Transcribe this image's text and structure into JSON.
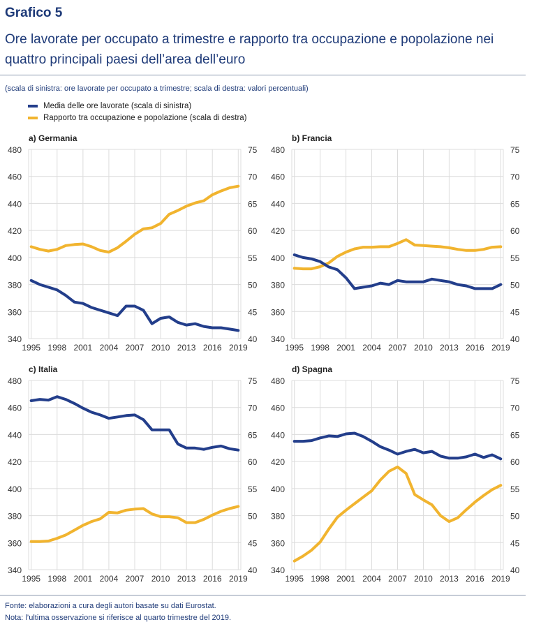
{
  "header": {
    "title": "Grafico 5",
    "subtitle": "Ore lavorate per occupato a trimestre e rapporto tra occupazione e popolazione nei quattro principali paesi dell’area dell’euro",
    "note": "(scala di sinistra: ore lavorate per occupato a trimestre; scala di destra: valori percentuali)"
  },
  "legend": [
    {
      "label": "Media delle ore lavorate (scala di sinistra)",
      "color": "#233e8b"
    },
    {
      "label": "Rapporto tra occupazione e popolazione (scala di destra)",
      "color": "#f1b42f"
    }
  ],
  "footer": {
    "source": "Fonte: elaborazioni a cura degli autori basate su dati Eurostat.",
    "note": "Nota: l’ultima osservazione si riferisce al quarto trimestre del 2019."
  },
  "chart_data": [
    {
      "type": "line",
      "title": "a) Germania",
      "x": [
        1995,
        1996,
        1997,
        1998,
        1999,
        2000,
        2001,
        2002,
        2003,
        2004,
        2005,
        2006,
        2007,
        2008,
        2009,
        2010,
        2011,
        2012,
        2013,
        2014,
        2015,
        2016,
        2017,
        2018,
        2019
      ],
      "xticks": [
        "1995",
        "1998",
        "2001",
        "2004",
        "2007",
        "2010",
        "2013",
        "2016",
        "2019"
      ],
      "ylim_left": [
        340,
        480
      ],
      "yticks_left": [
        "340",
        "360",
        "380",
        "400",
        "420",
        "440",
        "460",
        "480"
      ],
      "ylim_right": [
        40,
        75
      ],
      "yticks_right": [
        "40",
        "45",
        "50",
        "55",
        "60",
        "65",
        "70",
        "75"
      ],
      "series": [
        {
          "name": "Media delle ore lavorate (scala di sinistra)",
          "axis": "left",
          "values": [
            383,
            380,
            378,
            376,
            372,
            367,
            366,
            363,
            361,
            359,
            357,
            364,
            364,
            361,
            351,
            355,
            356,
            352,
            350,
            351,
            349,
            348,
            348,
            347,
            346
          ]
        },
        {
          "name": "Rapporto tra occupazione e popolazione (scala di destra)",
          "axis": "right",
          "values": [
            57.0,
            56.5,
            56.2,
            56.5,
            57.2,
            57.4,
            57.5,
            57.0,
            56.3,
            56.0,
            56.8,
            58.0,
            59.3,
            60.3,
            60.5,
            61.3,
            63.0,
            63.7,
            64.5,
            65.1,
            65.5,
            66.6,
            67.3,
            67.9,
            68.2
          ]
        }
      ]
    },
    {
      "type": "line",
      "title": "b) Francia",
      "x": [
        1995,
        1996,
        1997,
        1998,
        1999,
        2000,
        2001,
        2002,
        2003,
        2004,
        2005,
        2006,
        2007,
        2008,
        2009,
        2010,
        2011,
        2012,
        2013,
        2014,
        2015,
        2016,
        2017,
        2018,
        2019
      ],
      "xticks": [
        "1995",
        "1998",
        "2001",
        "2004",
        "2007",
        "2010",
        "2013",
        "2016",
        "2019"
      ],
      "ylim_left": [
        340,
        480
      ],
      "yticks_left": [
        "340",
        "360",
        "380",
        "400",
        "420",
        "440",
        "460",
        "480"
      ],
      "ylim_right": [
        40,
        75
      ],
      "yticks_right": [
        "40",
        "45",
        "50",
        "55",
        "60",
        "65",
        "70",
        "75"
      ],
      "series": [
        {
          "name": "Media delle ore lavorate (scala di sinistra)",
          "axis": "left",
          "values": [
            402,
            400,
            399,
            397,
            393,
            391,
            385,
            377,
            378,
            379,
            381,
            380,
            383,
            382,
            382,
            382,
            384,
            383,
            382,
            380,
            379,
            377,
            377,
            377,
            380
          ]
        },
        {
          "name": "Rapporto tra occupazione e popolazione (scala di destra)",
          "axis": "right",
          "values": [
            53.0,
            52.9,
            52.9,
            53.3,
            54.0,
            55.2,
            56.0,
            56.6,
            56.9,
            56.9,
            57.0,
            57.0,
            57.6,
            58.3,
            57.3,
            57.2,
            57.1,
            57.0,
            56.8,
            56.5,
            56.3,
            56.3,
            56.5,
            56.9,
            57.0
          ]
        }
      ]
    },
    {
      "type": "line",
      "title": "c) Italia",
      "x": [
        1995,
        1996,
        1997,
        1998,
        1999,
        2000,
        2001,
        2002,
        2003,
        2004,
        2005,
        2006,
        2007,
        2008,
        2009,
        2010,
        2011,
        2012,
        2013,
        2014,
        2015,
        2016,
        2017,
        2018,
        2019
      ],
      "xticks": [
        "1995",
        "1998",
        "2001",
        "2004",
        "2007",
        "2010",
        "2013",
        "2016",
        "2019"
      ],
      "ylim_left": [
        340,
        480
      ],
      "yticks_left": [
        "340",
        "360",
        "380",
        "400",
        "420",
        "440",
        "460",
        "480"
      ],
      "ylim_right": [
        40,
        75
      ],
      "yticks_right": [
        "40",
        "45",
        "50",
        "55",
        "60",
        "65",
        "70",
        "75"
      ],
      "series": [
        {
          "name": "Media delle ore lavorate (scala di sinistra)",
          "axis": "left",
          "values": [
            465,
            466,
            465.5,
            468,
            466,
            463,
            459.5,
            456.5,
            454.5,
            452,
            453,
            454,
            454.5,
            451,
            443.5,
            443.5,
            443.5,
            433,
            430,
            430,
            429,
            430.5,
            431.5,
            429.5,
            428.5
          ]
        },
        {
          "name": "Rapporto tra occupazione e popolazione (scala di destra)",
          "axis": "right",
          "values": [
            45.2,
            45.2,
            45.3,
            45.8,
            46.4,
            47.3,
            48.2,
            48.9,
            49.4,
            50.6,
            50.5,
            51.0,
            51.2,
            51.3,
            50.3,
            49.8,
            49.8,
            49.6,
            48.7,
            48.7,
            49.3,
            50.1,
            50.8,
            51.3,
            51.7
          ]
        }
      ]
    },
    {
      "type": "line",
      "title": "d) Spagna",
      "x": [
        1995,
        1996,
        1997,
        1998,
        1999,
        2000,
        2001,
        2002,
        2003,
        2004,
        2005,
        2006,
        2007,
        2008,
        2009,
        2010,
        2011,
        2012,
        2013,
        2014,
        2015,
        2016,
        2017,
        2018,
        2019
      ],
      "xticks": [
        "1995",
        "1998",
        "2001",
        "2004",
        "2007",
        "2010",
        "2013",
        "2016",
        "2019"
      ],
      "ylim_left": [
        340,
        480
      ],
      "yticks_left": [
        "340",
        "360",
        "380",
        "400",
        "420",
        "440",
        "460",
        "480"
      ],
      "ylim_right": [
        40,
        75
      ],
      "yticks_right": [
        "40",
        "45",
        "50",
        "55",
        "60",
        "65",
        "70",
        "75"
      ],
      "series": [
        {
          "name": "Media delle ore lavorate (scala di sinistra)",
          "axis": "left",
          "values": [
            435,
            435,
            435.5,
            437.5,
            439,
            438.5,
            440.5,
            441,
            438.5,
            435,
            431,
            428.5,
            425.5,
            427.5,
            429,
            426.5,
            427.5,
            424,
            422.5,
            422.5,
            423.5,
            425.5,
            423,
            425,
            422
          ]
        },
        {
          "name": "Rapporto tra occupazione e popolazione (scala di destra)",
          "axis": "right",
          "values": [
            41.6,
            42.5,
            43.6,
            45.1,
            47.5,
            49.7,
            51.0,
            52.2,
            53.4,
            54.6,
            56.6,
            58.2,
            59.0,
            57.8,
            53.9,
            52.9,
            52.0,
            50.0,
            48.9,
            49.6,
            51.1,
            52.5,
            53.7,
            54.8,
            55.6
          ]
        }
      ]
    }
  ]
}
